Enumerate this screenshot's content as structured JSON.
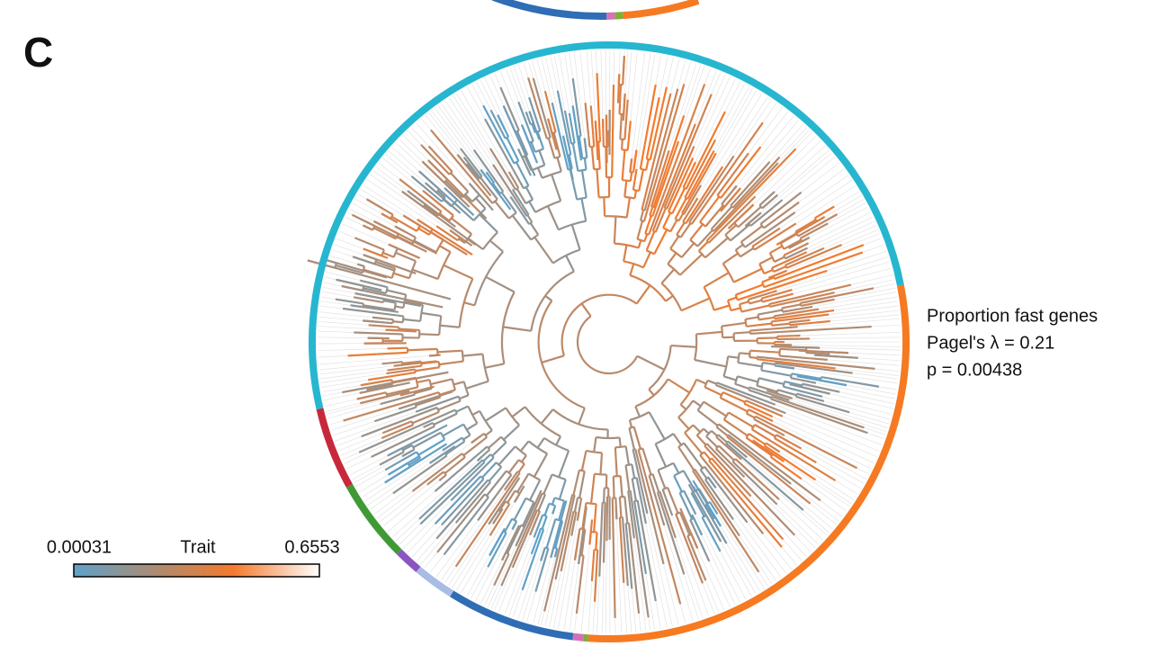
{
  "panel_label": "C",
  "annotation": {
    "trait_name": "Proportion fast genes",
    "lambda": "Pagel's λ = 0.21",
    "p_value": "p = 0.00438"
  },
  "legend": {
    "min": "0.00031",
    "title": "Trait",
    "max": "0.6553"
  }
}
